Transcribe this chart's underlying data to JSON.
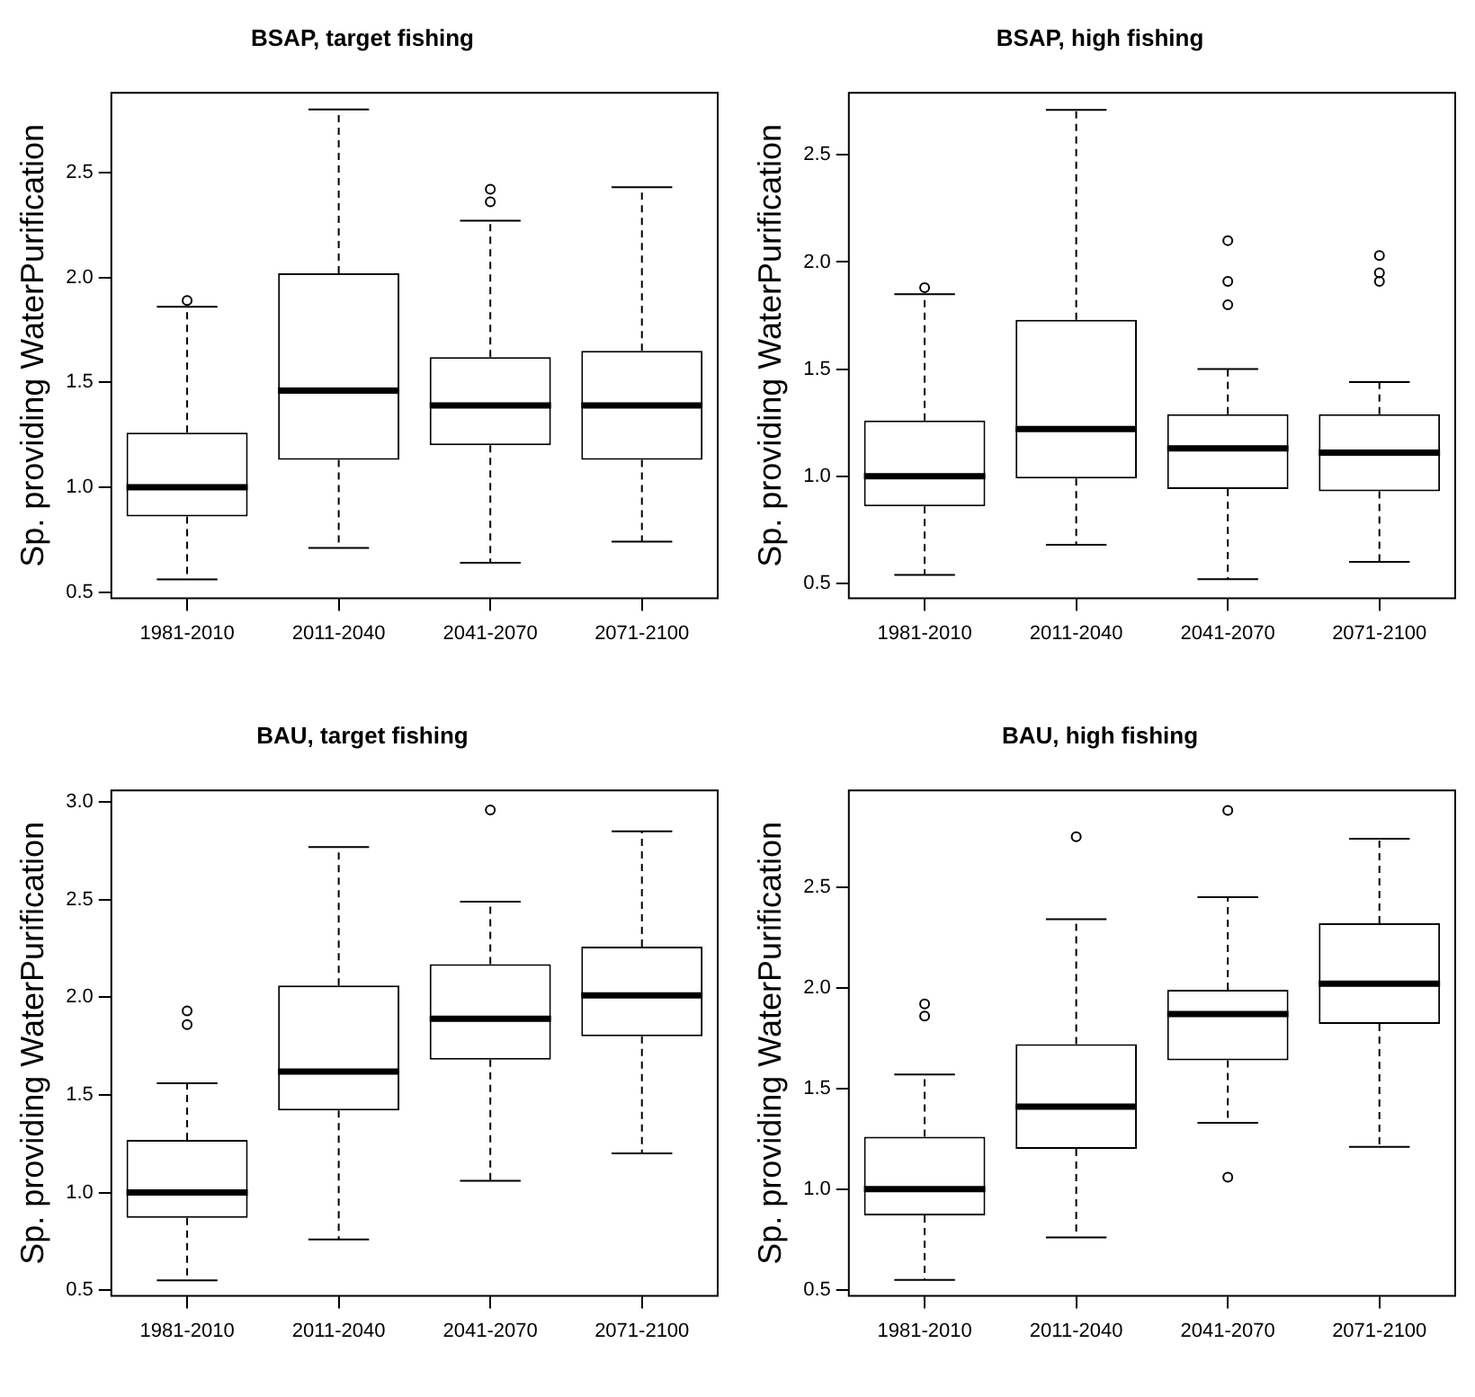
{
  "chart_data": [
    {
      "type": "box",
      "title": "BSAP, target fishing",
      "ylabel": "Sp. providing WaterPurification",
      "categories": [
        "1981-2010",
        "2011-2040",
        "2041-2070",
        "2071-2100"
      ],
      "ylim": [
        0.47,
        2.88
      ],
      "yticks": [
        0.5,
        {
          "value": 1,
          "label": "1.0"
        },
        1.5,
        {
          "value": 2,
          "label": "2.0"
        },
        2.5
      ],
      "grid": false,
      "boxes": [
        {
          "low": 0.56,
          "q1": 0.86,
          "median": 1.0,
          "q3": 1.26,
          "high": 1.86,
          "outliers": [
            1.89
          ]
        },
        {
          "low": 0.71,
          "q1": 1.13,
          "median": 1.46,
          "q3": 2.02,
          "high": 2.8
        },
        {
          "low": 0.64,
          "q1": 1.2,
          "median": 1.39,
          "q3": 1.62,
          "high": 2.27,
          "outliers": [
            2.36,
            2.42
          ]
        },
        {
          "low": 0.74,
          "q1": 1.13,
          "median": 1.39,
          "q3": 1.65,
          "high": 2.43
        }
      ]
    },
    {
      "type": "box",
      "title": "BSAP, high fishing",
      "ylabel": "Sp. providing WaterPurification",
      "categories": [
        "1981-2010",
        "2011-2040",
        "2041-2070",
        "2071-2100"
      ],
      "ylim": [
        0.43,
        2.79
      ],
      "yticks": [
        0.5,
        {
          "value": 1,
          "label": "1.0"
        },
        1.5,
        {
          "value": 2,
          "label": "2.0"
        },
        2.5
      ],
      "grid": false,
      "boxes": [
        {
          "low": 0.54,
          "q1": 0.86,
          "median": 1.0,
          "q3": 1.26,
          "high": 1.85,
          "outliers": [
            1.88
          ]
        },
        {
          "low": 0.68,
          "q1": 0.99,
          "median": 1.22,
          "q3": 1.73,
          "high": 2.71
        },
        {
          "low": 0.52,
          "q1": 0.94,
          "median": 1.13,
          "q3": 1.29,
          "high": 1.5,
          "outliers": [
            1.8,
            1.91,
            2.1
          ]
        },
        {
          "low": 0.6,
          "q1": 0.93,
          "median": 1.11,
          "q3": 1.29,
          "high": 1.44,
          "outliers": [
            1.91,
            1.95,
            2.03
          ]
        }
      ]
    },
    {
      "type": "box",
      "title": "BAU, target fishing",
      "ylabel": "Sp. providing WaterPurification",
      "categories": [
        "1981-2010",
        "2011-2040",
        "2041-2070",
        "2071-2100"
      ],
      "ylim": [
        0.47,
        3.06
      ],
      "yticks": [
        0.5,
        {
          "value": 1,
          "label": "1.0"
        },
        1.5,
        {
          "value": 2,
          "label": "2.0"
        },
        2.5,
        {
          "value": 3,
          "label": "3.0"
        }
      ],
      "grid": false,
      "boxes": [
        {
          "low": 0.55,
          "q1": 0.87,
          "median": 1.0,
          "q3": 1.27,
          "high": 1.56,
          "outliers": [
            1.86,
            1.93
          ]
        },
        {
          "low": 0.76,
          "q1": 1.42,
          "median": 1.62,
          "q3": 2.06,
          "high": 2.77
        },
        {
          "low": 1.06,
          "q1": 1.68,
          "median": 1.89,
          "q3": 2.17,
          "high": 2.49,
          "outliers": [
            2.96
          ]
        },
        {
          "low": 1.2,
          "q1": 1.8,
          "median": 2.01,
          "q3": 2.26,
          "high": 2.85
        }
      ]
    },
    {
      "type": "box",
      "title": "BAU, high fishing",
      "ylabel": "Sp. providing WaterPurification",
      "categories": [
        "1981-2010",
        "2011-2040",
        "2041-2070",
        "2071-2100"
      ],
      "ylim": [
        0.47,
        2.98
      ],
      "yticks": [
        0.5,
        {
          "value": 1,
          "label": "1.0"
        },
        1.5,
        {
          "value": 2,
          "label": "2.0"
        },
        2.5
      ],
      "grid": false,
      "boxes": [
        {
          "low": 0.55,
          "q1": 0.87,
          "median": 1.0,
          "q3": 1.26,
          "high": 1.57,
          "outliers": [
            1.86,
            1.92
          ]
        },
        {
          "low": 0.76,
          "q1": 1.2,
          "median": 1.41,
          "q3": 1.72,
          "high": 2.34,
          "outliers": [
            2.75
          ]
        },
        {
          "low": 1.33,
          "q1": 1.64,
          "median": 1.87,
          "q3": 1.99,
          "high": 2.45,
          "outliers": [
            1.06,
            2.88
          ]
        },
        {
          "low": 1.21,
          "q1": 1.82,
          "median": 2.02,
          "q3": 2.32,
          "high": 2.74
        }
      ]
    }
  ]
}
